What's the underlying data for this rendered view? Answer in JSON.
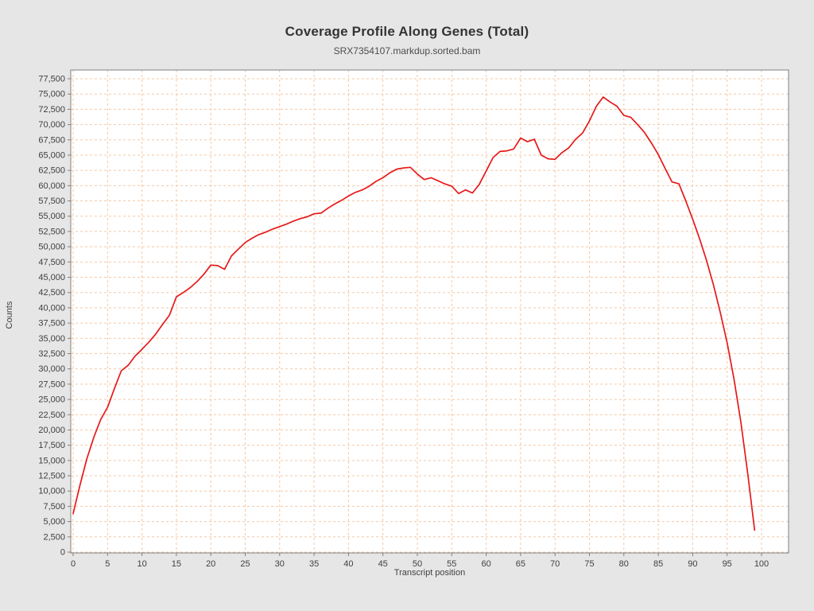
{
  "page": {
    "background": "#e6e6e6"
  },
  "chart_data": {
    "type": "line",
    "title": "Coverage Profile Along Genes (Total)",
    "subtitle": "SRX7354107.markdup.sorted.bam",
    "xlabel": "Transcript position",
    "ylabel": "Counts",
    "legend": "none",
    "grid": true,
    "grid_color": "#f5c8a5",
    "series_color": "#e61919",
    "plot_background": "#ffffff",
    "outer_background": "#e6e6e6",
    "axis_color": "#808080",
    "xlim": [
      0,
      103
    ],
    "ylim": [
      0,
      79000
    ],
    "xticks": [
      0,
      5,
      10,
      15,
      20,
      25,
      30,
      35,
      40,
      45,
      50,
      55,
      60,
      65,
      70,
      75,
      80,
      85,
      90,
      95,
      100
    ],
    "yticks": [
      0,
      2500,
      5000,
      7500,
      10000,
      12500,
      15000,
      17500,
      20000,
      22500,
      25000,
      27500,
      30000,
      32500,
      35000,
      37500,
      40000,
      42500,
      45000,
      47500,
      50000,
      52500,
      55000,
      57500,
      60000,
      62500,
      65000,
      67500,
      70000,
      72500,
      75000,
      77500
    ],
    "x": [
      0,
      1,
      2,
      3,
      4,
      5,
      6,
      7,
      8,
      9,
      10,
      11,
      12,
      13,
      14,
      15,
      16,
      17,
      18,
      19,
      20,
      21,
      22,
      23,
      24,
      25,
      26,
      27,
      28,
      29,
      30,
      31,
      32,
      33,
      34,
      35,
      36,
      37,
      38,
      39,
      40,
      41,
      42,
      43,
      44,
      45,
      46,
      47,
      48,
      49,
      50,
      51,
      52,
      53,
      54,
      55,
      56,
      57,
      58,
      59,
      60,
      61,
      62,
      63,
      64,
      65,
      66,
      67,
      68,
      69,
      70,
      71,
      72,
      73,
      74,
      75,
      76,
      77,
      78,
      79,
      80,
      81,
      82,
      83,
      84,
      85,
      86,
      87,
      88,
      89,
      90,
      91,
      92,
      93,
      94,
      95,
      96,
      97,
      98,
      99
    ],
    "values": [
      6300,
      11000,
      15300,
      18800,
      21700,
      23700,
      26800,
      29700,
      30600,
      32100,
      33200,
      34400,
      35700,
      37300,
      38800,
      41800,
      42500,
      43300,
      44300,
      45500,
      47000,
      46900,
      46300,
      48500,
      49600,
      50700,
      51400,
      52000,
      52400,
      52900,
      53300,
      53700,
      54200,
      54600,
      54900,
      55400,
      55500,
      56300,
      57000,
      57600,
      58300,
      58900,
      59300,
      59900,
      60700,
      61300,
      62100,
      62700,
      62900,
      63000,
      61900,
      61000,
      61300,
      60800,
      60300,
      59900,
      58700,
      59300,
      58800,
      60200,
      62400,
      64600,
      65600,
      65700,
      66000,
      67800,
      67200,
      67600,
      65000,
      64400,
      64300,
      65400,
      66200,
      67600,
      68600,
      70600,
      73000,
      74500,
      73700,
      73000,
      71500,
      71200,
      70000,
      68700,
      67000,
      65100,
      62800,
      60600,
      60300,
      57500,
      54500,
      51300,
      47800,
      43800,
      39300,
      34300,
      28300,
      21300,
      12800,
      3600
    ]
  }
}
